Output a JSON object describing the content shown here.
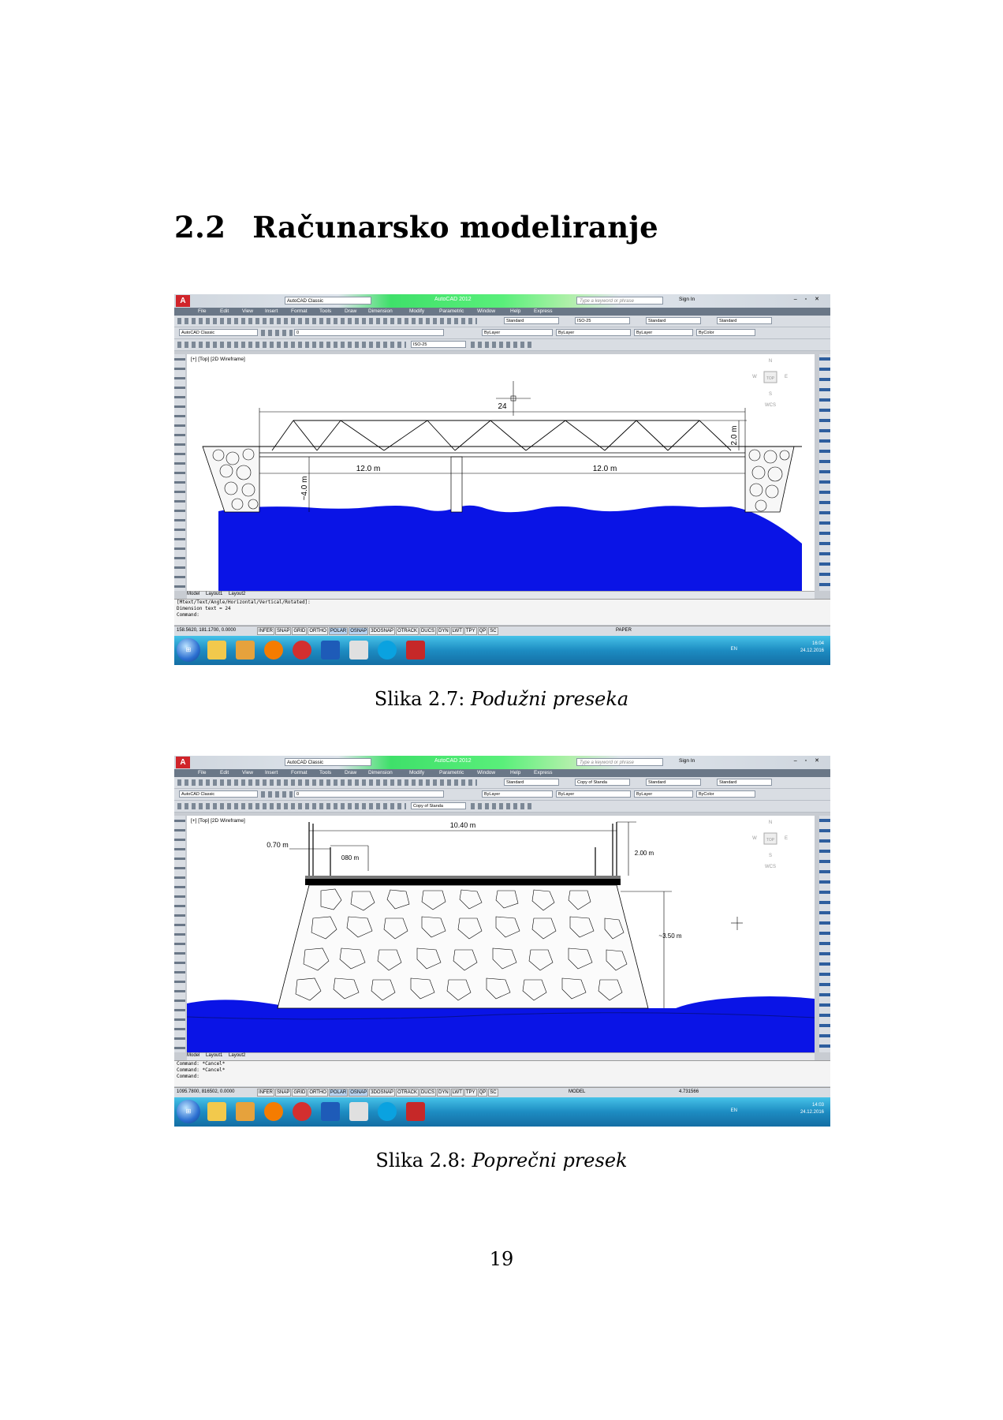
{
  "section": {
    "number": "2.2",
    "title": "Računarsko modeliranje"
  },
  "app": {
    "title_bar": "AutoCAD 2012",
    "workspace": "AutoCAD Classic",
    "search_placeholder": "Type a keyword or phrase",
    "sign_in": "Sign In",
    "menu": [
      "File",
      "Edit",
      "View",
      "Insert",
      "Format",
      "Tools",
      "Draw",
      "Dimension",
      "Modify",
      "Parametric",
      "Window",
      "Help",
      "Express"
    ],
    "text_style": "Standard",
    "table_style": "Standard",
    "multileader_style": "Standard",
    "layer": "0",
    "color": "ByLayer",
    "linetype": "ByLayer",
    "lineweight": "ByLayer",
    "plot_style": "ByColor",
    "viewport_label": "[+] [Top] [2D Wireframe]",
    "layout_tabs": [
      "Model",
      "Layout1",
      "Layout2"
    ],
    "status_modes": [
      "INFER",
      "SNAP",
      "GRID",
      "ORTHO",
      "POLAR",
      "OSNAP",
      "3DOSNAP",
      "OTRACK",
      "DUCS",
      "DYN",
      "LWT",
      "TPY",
      "QP",
      "SC"
    ],
    "language": "EN",
    "date": "24.12.2016",
    "viewcube": {
      "n": "N",
      "s": "S",
      "e": "E",
      "w": "W",
      "top": "TOP",
      "wcs": "WCS"
    },
    "colors": {
      "water": "#0a14e6",
      "menubar": "#6a7787",
      "accent_green": "#59ef7a"
    }
  },
  "figure1": {
    "dim_style": "ISO-25",
    "coords": "158.5620, 181.1700, 0.0000",
    "space": "PAPER",
    "time": "16:04",
    "command_lines": [
      "[Mtext/Text/Angle/Horizontal/Vertical/Rotated]:",
      "Dimension text = 24",
      "Command:"
    ],
    "dims": {
      "overall": "24",
      "span_left": "12.0 m",
      "span_right": "12.0 m",
      "height": "~4.0 m",
      "truss": "2.0 m"
    },
    "caption_prefix": "Slika 2.7:",
    "caption_title": "Podužni preseka"
  },
  "figure2": {
    "dim_style": "Copy of Standa",
    "coords": "1095.7800, 816502, 0.0000",
    "space": "MODEL",
    "scale": "4.731566",
    "time": "14:03",
    "command_lines": [
      "Command: *Cancel*",
      "Command: *Cancel*",
      "Command:"
    ],
    "dims": {
      "width": "10.40 m",
      "walk": "0.70 m",
      "rail": "080 m",
      "truss": "2.00 m",
      "pier": "~3.50 m"
    },
    "caption_prefix": "Slika 2.8:",
    "caption_title": "Poprečni presek"
  },
  "page_number": "19"
}
